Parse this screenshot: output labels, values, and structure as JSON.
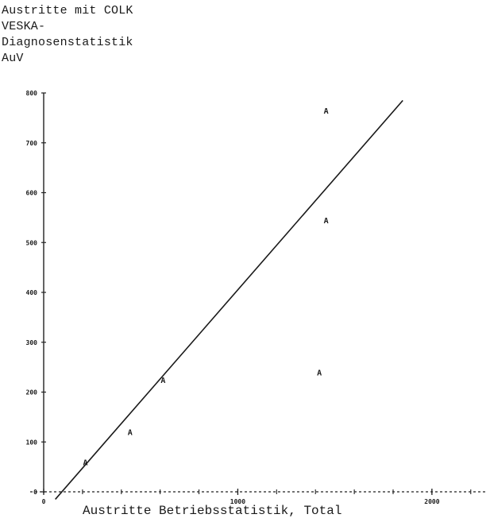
{
  "chart_data": {
    "type": "scatter",
    "ylabel_lines": [
      "Austritte mit COLK",
      "VESKA-",
      "Diagnosenstatistik",
      "AuV"
    ],
    "xlabel": "Austritte Betriebsstatistik, Total",
    "xlim": [
      0,
      2250
    ],
    "ylim": [
      0,
      800
    ],
    "x_ticks": [
      0,
      1000,
      2000
    ],
    "x_tick_labels": [
      "0",
      "1000",
      "2000"
    ],
    "y_ticks": [
      0,
      100,
      200,
      300,
      400,
      500,
      600,
      700,
      800
    ],
    "y_tick_labels": [
      "0",
      "100",
      "200",
      "300",
      "400",
      "500",
      "600",
      "700",
      "800"
    ],
    "marker_label": "A",
    "series": [
      {
        "x": [
          215,
          445,
          615,
          1420,
          1455,
          1455
        ],
        "y": [
          60,
          120,
          225,
          240,
          545,
          765
        ]
      }
    ],
    "fit_line": {
      "x": [
        60,
        1850
      ],
      "y": [
        -15,
        785
      ]
    }
  }
}
